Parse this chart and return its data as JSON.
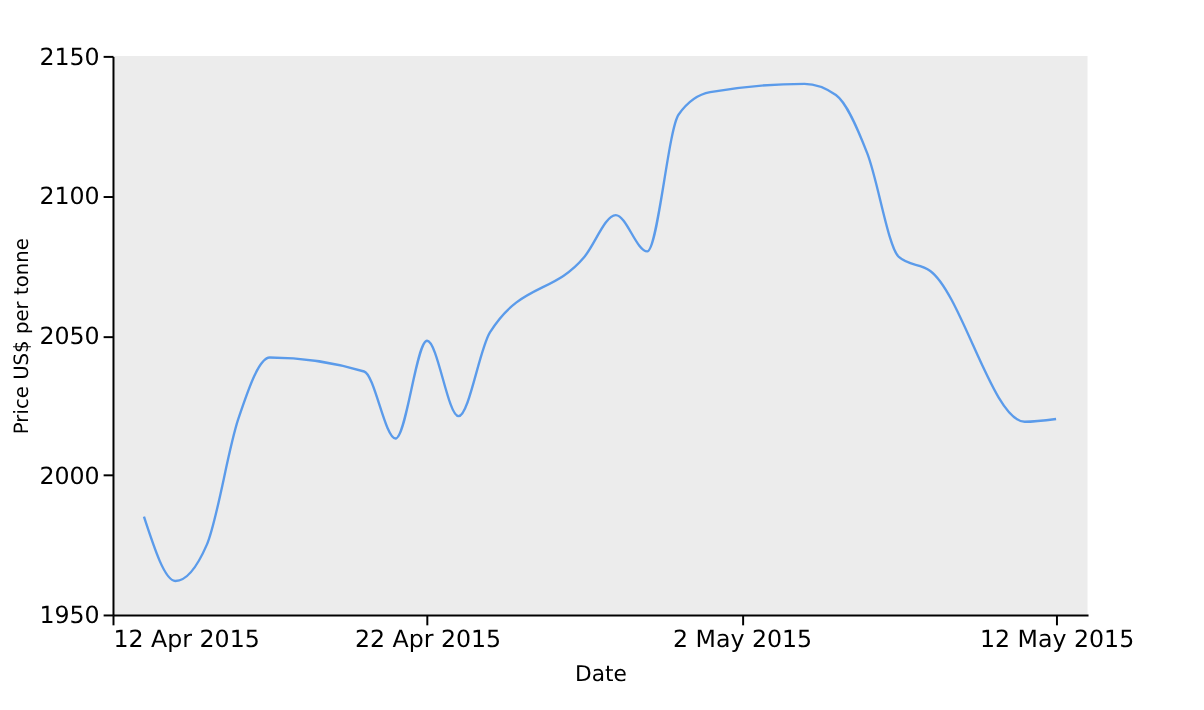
{
  "chart_data": {
    "type": "line",
    "xlabel": "Date",
    "ylabel": "Price US$ per tonne",
    "x": [
      "2015-04-13",
      "2015-04-14",
      "2015-04-15",
      "2015-04-16",
      "2015-04-17",
      "2015-04-20",
      "2015-04-21",
      "2015-04-22",
      "2015-04-23",
      "2015-04-24",
      "2015-04-27",
      "2015-04-28",
      "2015-04-29",
      "2015-04-30",
      "2015-05-01",
      "2015-05-04",
      "2015-05-05",
      "2015-05-06",
      "2015-05-07",
      "2015-05-08",
      "2015-05-11",
      "2015-05-12"
    ],
    "series": [
      {
        "color": "#5b9bea",
        "values": [
          1985,
          1962,
          1975,
          2020,
          2042,
          2037,
          2013,
          2048,
          2021,
          2051,
          2078,
          2093,
          2080,
          2129,
          2137,
          2140,
          2136,
          2115,
          2078,
          2073,
          2019,
          2020
        ]
      }
    ],
    "xlim": [
      "2015-04-12",
      "2015-05-13"
    ],
    "xticks": [
      {
        "value": "2015-04-12",
        "label": "12 Apr 2015"
      },
      {
        "value": "2015-04-22",
        "label": "22 Apr 2015"
      },
      {
        "value": "2015-05-02",
        "label": "2 May 2015"
      },
      {
        "value": "2015-05-12",
        "label": "12 May 2015"
      }
    ],
    "ylim": [
      1950,
      2150
    ],
    "yticks": [
      1950,
      2000,
      2050,
      2100,
      2150
    ],
    "grid": false,
    "marker": "none",
    "line_style": "solid"
  }
}
